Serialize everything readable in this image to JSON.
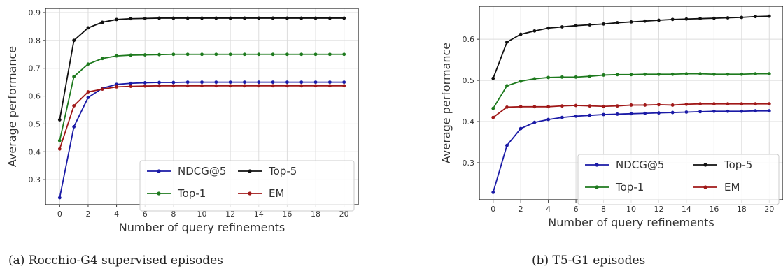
{
  "chart_data": [
    {
      "type": "line",
      "caption": "(a) Rocchio-G4 supervised episodes",
      "xlabel": "Number of query refinements",
      "ylabel": "Average performance",
      "xlim": [
        -1,
        21
      ],
      "ylim": [
        0.21,
        0.915
      ],
      "xticks": [
        0,
        2,
        4,
        6,
        8,
        10,
        12,
        14,
        16,
        18,
        20
      ],
      "yticks": [
        0.3,
        0.4,
        0.5,
        0.6,
        0.7,
        0.8,
        0.9
      ],
      "ytick_labels": [
        "0.3",
        "0.4",
        "0.5",
        "0.6",
        "0.7",
        "0.8",
        "0.9"
      ],
      "grid": true,
      "legend_position": "lower-right",
      "x": [
        0,
        1,
        2,
        3,
        4,
        5,
        6,
        7,
        8,
        9,
        10,
        11,
        12,
        13,
        14,
        15,
        16,
        17,
        18,
        19,
        20
      ],
      "series": [
        {
          "name": "NDCG@5",
          "color": "#1a1aa6",
          "values": [
            0.235,
            0.49,
            0.595,
            0.628,
            0.642,
            0.646,
            0.648,
            0.649,
            0.649,
            0.65,
            0.65,
            0.65,
            0.65,
            0.65,
            0.65,
            0.65,
            0.65,
            0.65,
            0.65,
            0.65,
            0.65
          ]
        },
        {
          "name": "Top-5",
          "color": "#111111",
          "values": [
            0.515,
            0.8,
            0.845,
            0.865,
            0.875,
            0.878,
            0.879,
            0.88,
            0.88,
            0.88,
            0.88,
            0.88,
            0.88,
            0.88,
            0.88,
            0.88,
            0.88,
            0.88,
            0.88,
            0.88,
            0.88
          ]
        },
        {
          "name": "Top-1",
          "color": "#1e7a1e",
          "values": [
            0.44,
            0.67,
            0.715,
            0.735,
            0.744,
            0.747,
            0.748,
            0.749,
            0.75,
            0.75,
            0.75,
            0.75,
            0.75,
            0.75,
            0.75,
            0.75,
            0.75,
            0.75,
            0.75,
            0.75,
            0.75
          ]
        },
        {
          "name": "EM",
          "color": "#a01818",
          "values": [
            0.41,
            0.565,
            0.615,
            0.625,
            0.633,
            0.635,
            0.636,
            0.637,
            0.637,
            0.637,
            0.637,
            0.637,
            0.637,
            0.637,
            0.637,
            0.637,
            0.637,
            0.637,
            0.637,
            0.637,
            0.637
          ]
        }
      ]
    },
    {
      "type": "line",
      "caption": "(b) T5-G1 episodes",
      "xlabel": "Number of query refinements",
      "ylabel": "Average performance",
      "xlim": [
        -1,
        21
      ],
      "ylim": [
        0.21,
        0.68
      ],
      "xticks": [
        0,
        2,
        4,
        6,
        8,
        10,
        12,
        14,
        16,
        18,
        20
      ],
      "yticks": [
        0.3,
        0.4,
        0.5,
        0.6
      ],
      "ytick_labels": [
        "0.3",
        "0.4",
        "0.5",
        "0.6"
      ],
      "grid": true,
      "legend_position": "lower-right",
      "x": [
        0,
        1,
        2,
        3,
        4,
        5,
        6,
        7,
        8,
        9,
        10,
        11,
        12,
        13,
        14,
        15,
        16,
        17,
        18,
        19,
        20
      ],
      "series": [
        {
          "name": "NDCG@5",
          "color": "#1a1aa6",
          "values": [
            0.228,
            0.342,
            0.383,
            0.398,
            0.405,
            0.41,
            0.413,
            0.415,
            0.417,
            0.418,
            0.419,
            0.42,
            0.421,
            0.422,
            0.423,
            0.424,
            0.425,
            0.425,
            0.425,
            0.426,
            0.426
          ]
        },
        {
          "name": "Top-5",
          "color": "#111111",
          "values": [
            0.505,
            0.593,
            0.612,
            0.62,
            0.627,
            0.63,
            0.633,
            0.635,
            0.637,
            0.64,
            0.642,
            0.644,
            0.646,
            0.648,
            0.649,
            0.65,
            0.651,
            0.652,
            0.653,
            0.655,
            0.656
          ]
        },
        {
          "name": "Top-1",
          "color": "#1e7a1e",
          "values": [
            0.432,
            0.487,
            0.498,
            0.504,
            0.507,
            0.508,
            0.508,
            0.51,
            0.513,
            0.514,
            0.514,
            0.515,
            0.515,
            0.515,
            0.516,
            0.516,
            0.515,
            0.515,
            0.515,
            0.516,
            0.516
          ]
        },
        {
          "name": "EM",
          "color": "#a01818",
          "values": [
            0.41,
            0.435,
            0.436,
            0.436,
            0.436,
            0.438,
            0.439,
            0.438,
            0.437,
            0.438,
            0.44,
            0.44,
            0.441,
            0.44,
            0.442,
            0.443,
            0.443,
            0.443,
            0.443,
            0.443,
            0.443
          ]
        }
      ]
    }
  ]
}
